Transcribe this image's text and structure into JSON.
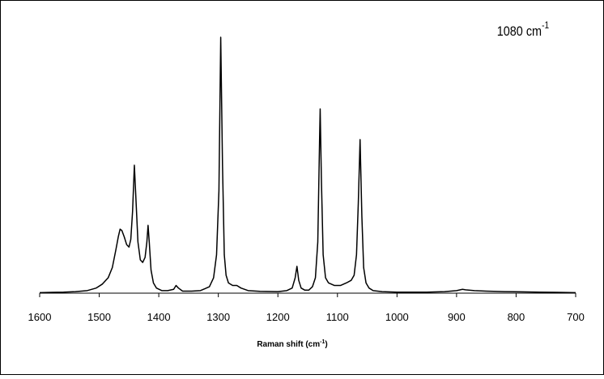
{
  "chart_data": {
    "type": "line",
    "xlabel": [
      "Raman shift (cm",
      "-1",
      ")"
    ],
    "annotation": [
      "1080 cm",
      "-1"
    ],
    "xlim": [
      1600,
      700
    ],
    "xticks": [
      1600,
      1500,
      1400,
      1300,
      1200,
      1100,
      1000,
      900,
      800,
      700
    ],
    "ylim": [
      0,
      100
    ],
    "series": [
      {
        "color": "#000000",
        "x": [
          1600,
          1580,
          1560,
          1540,
          1520,
          1505,
          1495,
          1485,
          1478,
          1472,
          1468,
          1465,
          1462,
          1458,
          1454,
          1450,
          1447,
          1444,
          1441,
          1438,
          1435,
          1431,
          1427,
          1423,
          1420,
          1418,
          1416,
          1413,
          1409,
          1404,
          1395,
          1385,
          1375,
          1371,
          1367,
          1360,
          1345,
          1330,
          1315,
          1308,
          1303,
          1299,
          1296,
          1293,
          1290,
          1287,
          1283,
          1276,
          1269,
          1262,
          1250,
          1230,
          1200,
          1185,
          1176,
          1171,
          1168,
          1165,
          1161,
          1155,
          1148,
          1142,
          1137,
          1133,
          1130,
          1129,
          1127,
          1124,
          1120,
          1115,
          1105,
          1095,
          1085,
          1077,
          1072,
          1068,
          1065,
          1062,
          1059,
          1056,
          1052,
          1047,
          1040,
          1025,
          1000,
          950,
          920,
          900,
          890,
          885,
          870,
          850,
          820,
          790,
          760,
          730,
          700
        ],
        "values": [
          0.2,
          0.3,
          0.4,
          0.6,
          1,
          2,
          3.5,
          6,
          10,
          17,
          22,
          25,
          24.5,
          22,
          19,
          18,
          21,
          32,
          50,
          35,
          20,
          13,
          12,
          14,
          20,
          26.5,
          20,
          9,
          4,
          2,
          1,
          1,
          1.5,
          3,
          2,
          0.8,
          0.8,
          1,
          2.5,
          6,
          15,
          40,
          100,
          50,
          15,
          7,
          4,
          3,
          3,
          2,
          1,
          0.7,
          0.6,
          1,
          2,
          6,
          10.5,
          5,
          2,
          1.2,
          1.2,
          2.5,
          6,
          20,
          60,
          72,
          45,
          15,
          6,
          4,
          3,
          3,
          4,
          5,
          7,
          15,
          35,
          60,
          30,
          10,
          4,
          2,
          1,
          0.6,
          0.4,
          0.4,
          0.6,
          1,
          1.5,
          1.3,
          1,
          0.8,
          0.6,
          0.5,
          0.4,
          0.3,
          0.2
        ]
      }
    ]
  }
}
